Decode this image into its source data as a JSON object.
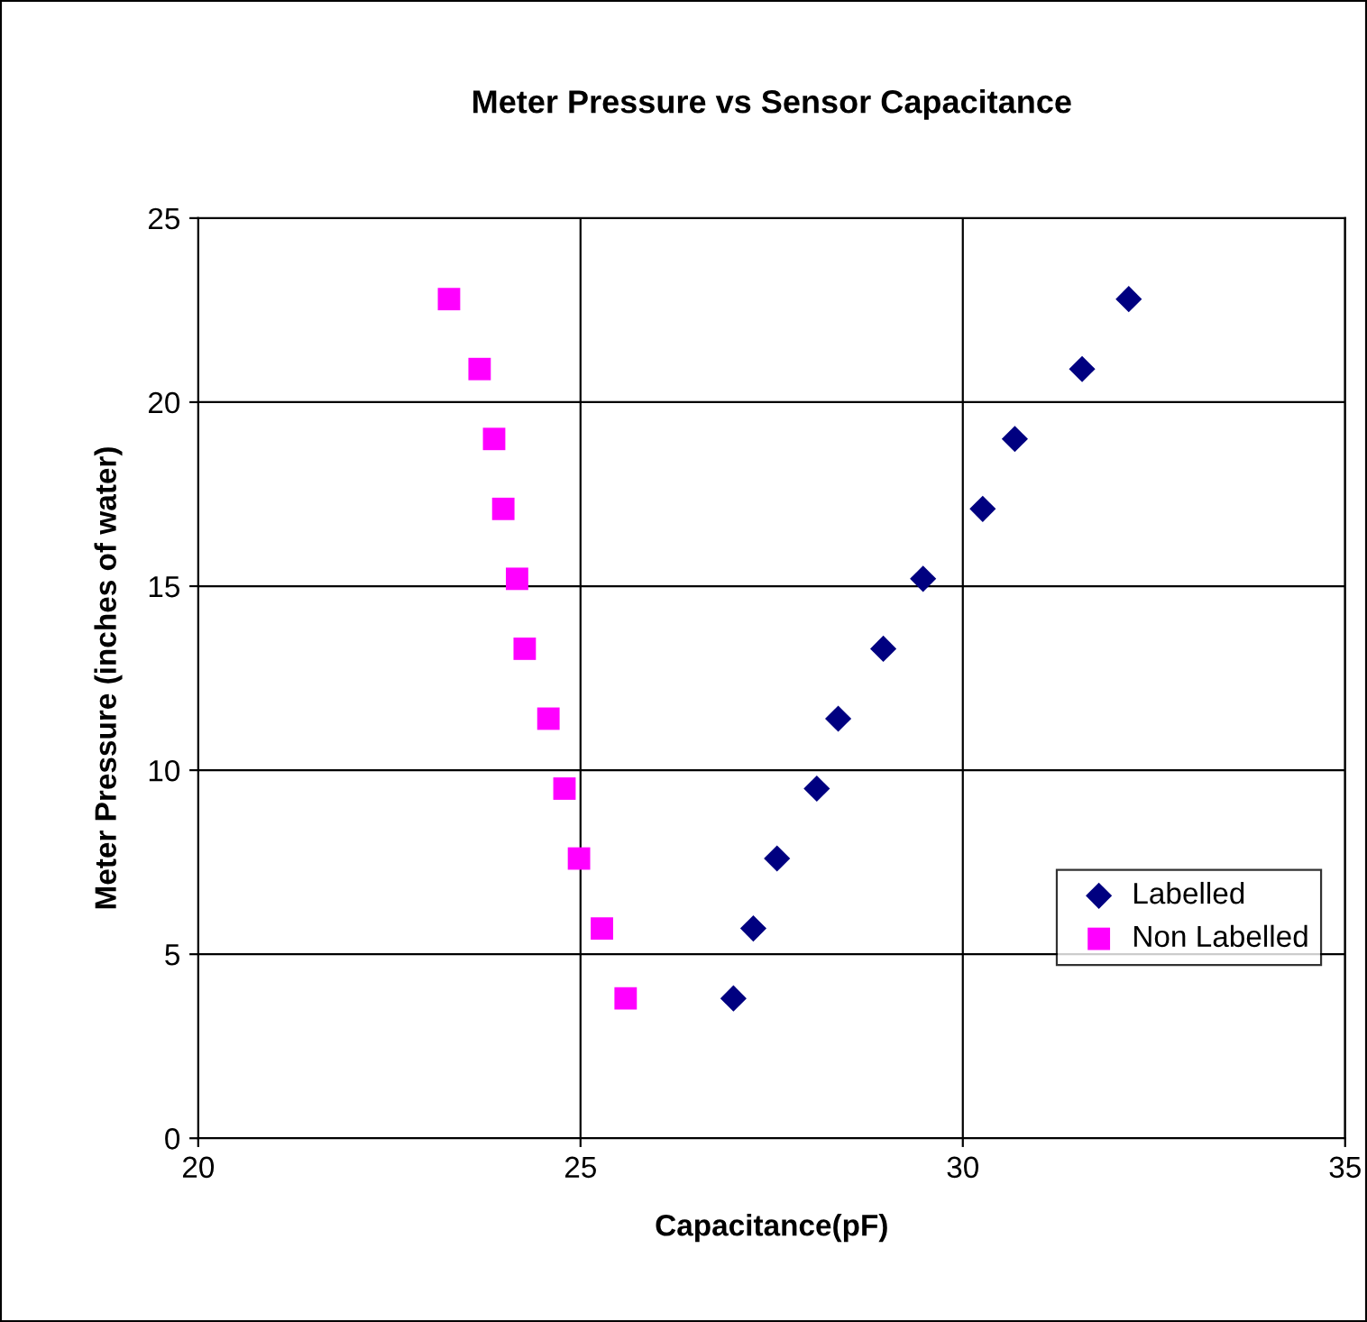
{
  "chart_data": {
    "type": "scatter",
    "title": "Meter Pressure vs Sensor Capacitance",
    "xlabel": "Capacitance(pF)",
    "ylabel": "Meter Pressure (inches of water)",
    "series": [
      {
        "name": "Labelled",
        "color": "#000080",
        "marker": "diamond",
        "x": [
          27.0,
          27.26,
          27.57,
          28.09,
          28.37,
          28.96,
          29.48,
          30.26,
          30.68,
          31.56,
          32.17
        ],
        "values": [
          3.8,
          5.7,
          7.6,
          9.5,
          11.4,
          13.3,
          15.2,
          17.1,
          19.0,
          20.9,
          22.8
        ]
      },
      {
        "name": "Non Labelled",
        "color": "#ff00ff",
        "marker": "square",
        "x": [
          25.59,
          25.28,
          24.98,
          24.79,
          24.58,
          24.27,
          24.17,
          23.99,
          23.87,
          23.68,
          23.28
        ],
        "values": [
          3.8,
          5.7,
          7.6,
          9.5,
          11.4,
          13.3,
          15.2,
          17.1,
          19.0,
          20.9,
          22.8
        ]
      }
    ],
    "xlim": [
      20,
      35
    ],
    "xticks": [
      20,
      25,
      30,
      35
    ],
    "ylim": [
      0,
      25
    ],
    "yticks": [
      0,
      5,
      10,
      15,
      20,
      25
    ],
    "grid": true,
    "legend": "right"
  }
}
